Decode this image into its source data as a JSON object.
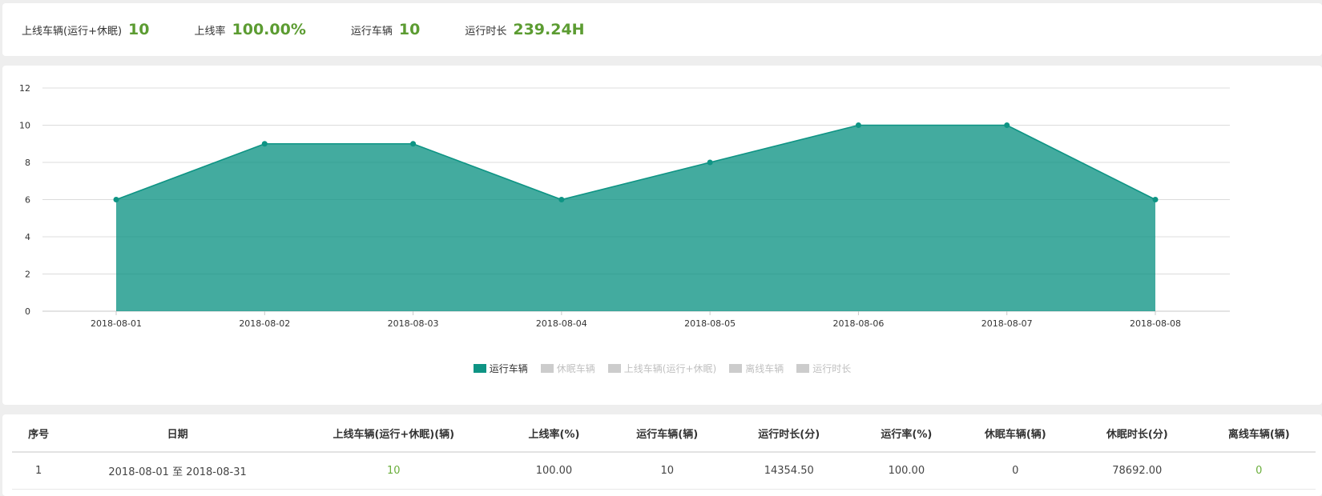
{
  "summary": {
    "items": [
      {
        "label": "上线车辆(运行+休眠)",
        "value": "10"
      },
      {
        "label": "上线率",
        "value": "100.00%"
      },
      {
        "label": "运行车辆",
        "value": "10"
      },
      {
        "label": "运行时长",
        "value": "239.24H"
      }
    ]
  },
  "chart_data": {
    "type": "area",
    "categories": [
      "2018-08-01",
      "2018-08-02",
      "2018-08-03",
      "2018-08-04",
      "2018-08-05",
      "2018-08-06",
      "2018-08-07",
      "2018-08-08"
    ],
    "series": [
      {
        "name": "运行车辆",
        "values": [
          6,
          9,
          9,
          6,
          8,
          10,
          10,
          6
        ],
        "color": "#0e9484",
        "visible": true
      }
    ],
    "ylim": [
      0,
      12
    ],
    "yticks": [
      0,
      2,
      4,
      6,
      8,
      10,
      12
    ],
    "grid": true,
    "legend_position": "bottom-center",
    "legend": [
      {
        "label": "运行车辆",
        "active": true,
        "color": "#0e9484"
      },
      {
        "label": "休眠车辆",
        "active": false,
        "color": "#cccccc"
      },
      {
        "label": "上线车辆(运行+休眠)",
        "active": false,
        "color": "#cccccc"
      },
      {
        "label": "离线车辆",
        "active": false,
        "color": "#cccccc"
      },
      {
        "label": "运行时长",
        "active": false,
        "color": "#cccccc"
      }
    ]
  },
  "table": {
    "headers": [
      "序号",
      "日期",
      "上线车辆(运行+休眠)(辆)",
      "上线率(%)",
      "运行车辆(辆)",
      "运行时长(分)",
      "运行率(%)",
      "休眠车辆(辆)",
      "休眠时长(分)",
      "离线车辆(辆)"
    ],
    "rows": [
      [
        "1",
        "2018-08-01 至 2018-08-31",
        "10",
        "100.00",
        "10",
        "14354.50",
        "100.00",
        "0",
        "78692.00",
        "0"
      ]
    ]
  }
}
